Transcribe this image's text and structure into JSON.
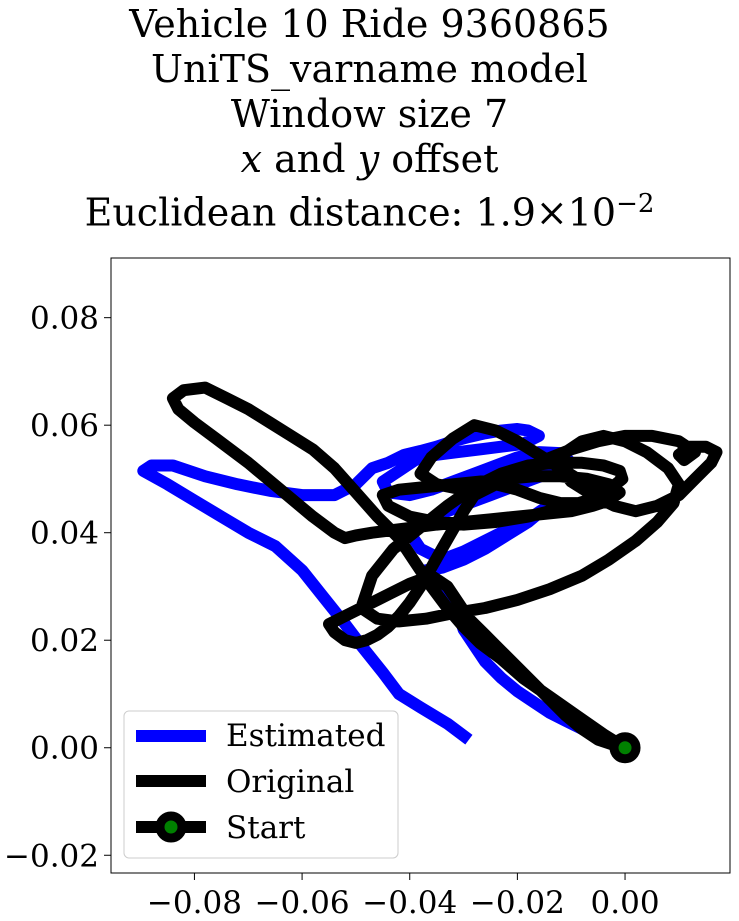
{
  "chart_data": {
    "type": "line",
    "title_lines": [
      "Vehicle 10 Ride 9360865",
      "UniTS_varname model",
      "Window size 7"
    ],
    "title_offset": {
      "x": "x",
      "and": " and ",
      "y": "y",
      "suffix": " offset"
    },
    "title_distance": {
      "prefix": "Euclidean distance: ",
      "mantissa": "1.9",
      "times": "×",
      "base": "10",
      "exponent": "−2"
    },
    "xlabel": "",
    "ylabel": "",
    "xlim": [
      -0.0955,
      0.0195
    ],
    "ylim": [
      -0.0233,
      0.0911
    ],
    "x_ticks": [
      -0.08,
      -0.06,
      -0.04,
      -0.02,
      0.0
    ],
    "x_tick_labels": [
      "−0.08",
      "−0.06",
      "−0.04",
      "−0.02",
      "0.00"
    ],
    "y_ticks": [
      -0.02,
      0.0,
      0.02,
      0.04,
      0.06,
      0.08
    ],
    "y_tick_labels": [
      "−0.02",
      "0.00",
      "0.02",
      "0.04",
      "0.06",
      "0.08"
    ],
    "legend_position": "lower-left",
    "series": [
      {
        "name": "Estimated",
        "color": "#0000ff",
        "x": [
          -0.029,
          -0.033,
          -0.038,
          -0.042,
          -0.045,
          -0.049,
          -0.052,
          -0.056,
          -0.06,
          -0.065,
          -0.07,
          -0.075,
          -0.08,
          -0.085,
          -0.0895,
          -0.088,
          -0.084,
          -0.078,
          -0.072,
          -0.066,
          -0.06,
          -0.054,
          -0.05,
          -0.047,
          -0.044,
          -0.041,
          -0.038,
          -0.035,
          -0.032,
          -0.029,
          -0.026,
          -0.023,
          -0.02,
          -0.018,
          -0.016,
          -0.019,
          -0.023,
          -0.027,
          -0.031,
          -0.035,
          -0.039,
          -0.042,
          -0.045,
          -0.044,
          -0.04,
          -0.036,
          -0.032,
          -0.028,
          -0.024,
          -0.02,
          -0.016,
          -0.012,
          -0.01,
          -0.013,
          -0.017,
          -0.021,
          -0.025,
          -0.029,
          -0.033,
          -0.037,
          -0.04,
          -0.038,
          -0.034,
          -0.03,
          -0.026,
          -0.022,
          -0.018,
          -0.015,
          -0.018,
          -0.022,
          -0.026,
          -0.03,
          -0.034,
          -0.037,
          -0.035,
          -0.032,
          -0.031,
          -0.03,
          -0.028,
          -0.026,
          -0.023,
          -0.02,
          -0.017,
          -0.014,
          -0.011,
          -0.008,
          -0.005,
          -0.002,
          0.0
        ],
        "y": [
          0.0015,
          0.0045,
          0.0075,
          0.01,
          0.014,
          0.019,
          0.023,
          0.028,
          0.033,
          0.0375,
          0.04,
          0.043,
          0.046,
          0.049,
          0.0515,
          0.0525,
          0.0525,
          0.0505,
          0.049,
          0.0478,
          0.047,
          0.047,
          0.049,
          0.052,
          0.053,
          0.0545,
          0.0552,
          0.056,
          0.057,
          0.0578,
          0.0585,
          0.059,
          0.0593,
          0.059,
          0.058,
          0.0565,
          0.056,
          0.0555,
          0.055,
          0.0545,
          0.0535,
          0.0515,
          0.0495,
          0.0475,
          0.047,
          0.048,
          0.0495,
          0.051,
          0.0525,
          0.054,
          0.055,
          0.0548,
          0.053,
          0.0515,
          0.05,
          0.0485,
          0.047,
          0.0455,
          0.044,
          0.042,
          0.04,
          0.037,
          0.035,
          0.0365,
          0.0385,
          0.0405,
          0.0425,
          0.0445,
          0.042,
          0.0395,
          0.037,
          0.035,
          0.0335,
          0.033,
          0.031,
          0.028,
          0.025,
          0.022,
          0.019,
          0.016,
          0.013,
          0.0105,
          0.0085,
          0.0065,
          0.005,
          0.0035,
          0.002,
          0.0008,
          0.0
        ]
      },
      {
        "name": "Original",
        "color": "#000000",
        "x": [
          0.0,
          -0.004,
          -0.009,
          -0.014,
          -0.019,
          -0.023,
          -0.027,
          -0.03,
          -0.033,
          -0.036,
          -0.039,
          -0.042,
          -0.046,
          -0.05,
          -0.054,
          -0.058,
          -0.062,
          -0.066,
          -0.07,
          -0.074,
          -0.078,
          -0.082,
          -0.084,
          -0.083,
          -0.08,
          -0.076,
          -0.07,
          -0.064,
          -0.058,
          -0.054,
          -0.052,
          -0.05,
          -0.047,
          -0.043,
          -0.039,
          -0.035,
          -0.03,
          -0.025,
          -0.02,
          -0.015,
          -0.01,
          -0.006,
          -0.003,
          -0.001,
          -0.003,
          -0.007,
          -0.012,
          -0.017,
          -0.022,
          -0.027,
          -0.032,
          -0.037,
          -0.042,
          -0.045,
          -0.044,
          -0.04,
          -0.035,
          -0.03,
          -0.024,
          -0.018,
          -0.012,
          -0.007,
          -0.003,
          -0.0005,
          -0.001,
          -0.004,
          -0.008,
          -0.013,
          -0.018,
          -0.023,
          -0.028,
          -0.033,
          -0.038,
          -0.043,
          -0.047,
          -0.049,
          -0.046,
          -0.042,
          -0.037,
          -0.032,
          -0.026,
          -0.02,
          -0.014,
          -0.008,
          -0.003,
          0.002,
          0.006,
          0.009,
          0.01,
          0.008,
          0.004,
          0.0,
          -0.004,
          -0.008,
          -0.011,
          -0.012,
          -0.01,
          -0.006,
          -0.002,
          0.002,
          0.006,
          0.01,
          0.013,
          0.016,
          0.017,
          0.015,
          0.012,
          0.01,
          0.011,
          0.013,
          0.01,
          0.005,
          0.0,
          -0.005,
          -0.01,
          -0.015,
          -0.02,
          -0.025,
          -0.03,
          -0.035,
          -0.038,
          -0.036,
          -0.032,
          -0.028,
          -0.024,
          -0.02,
          -0.016,
          -0.012,
          -0.008,
          -0.005,
          -0.008,
          -0.012,
          -0.016,
          -0.02,
          -0.024,
          -0.028,
          -0.03,
          -0.032,
          -0.034,
          -0.036,
          -0.038,
          -0.04,
          -0.042,
          -0.044,
          -0.046,
          -0.048,
          -0.05,
          -0.052,
          -0.054,
          -0.055,
          -0.052,
          -0.048,
          -0.044,
          -0.04,
          -0.036,
          -0.033,
          -0.031,
          -0.029,
          -0.026,
          -0.023,
          -0.02,
          -0.017,
          -0.014,
          -0.011,
          -0.008,
          -0.005,
          -0.002,
          0.0
        ],
        "y": [
          0.0,
          0.0025,
          0.006,
          0.0095,
          0.013,
          0.0165,
          0.0195,
          0.0225,
          0.026,
          0.03,
          0.0345,
          0.039,
          0.043,
          0.0475,
          0.052,
          0.0555,
          0.058,
          0.0605,
          0.063,
          0.065,
          0.067,
          0.0665,
          0.065,
          0.063,
          0.0605,
          0.0575,
          0.053,
          0.048,
          0.043,
          0.04,
          0.039,
          0.0395,
          0.04,
          0.0405,
          0.041,
          0.0415,
          0.042,
          0.0425,
          0.043,
          0.0435,
          0.044,
          0.045,
          0.046,
          0.0475,
          0.049,
          0.05,
          0.0505,
          0.0505,
          0.05,
          0.0495,
          0.049,
          0.0485,
          0.048,
          0.047,
          0.045,
          0.043,
          0.042,
          0.0415,
          0.042,
          0.043,
          0.0445,
          0.046,
          0.048,
          0.05,
          0.0515,
          0.0525,
          0.053,
          0.053,
          0.0525,
          0.051,
          0.0485,
          0.045,
          0.041,
          0.037,
          0.032,
          0.026,
          0.024,
          0.0235,
          0.024,
          0.025,
          0.026,
          0.0275,
          0.0295,
          0.032,
          0.035,
          0.0385,
          0.042,
          0.0455,
          0.049,
          0.052,
          0.055,
          0.057,
          0.058,
          0.057,
          0.055,
          0.052,
          0.0495,
          0.047,
          0.045,
          0.044,
          0.045,
          0.047,
          0.05,
          0.053,
          0.055,
          0.056,
          0.056,
          0.0545,
          0.0535,
          0.055,
          0.057,
          0.058,
          0.058,
          0.057,
          0.0555,
          0.0535,
          0.051,
          0.049,
          0.048,
          0.049,
          0.051,
          0.054,
          0.0575,
          0.06,
          0.059,
          0.057,
          0.0545,
          0.052,
          0.0495,
          0.047,
          0.0455,
          0.0455,
          0.0465,
          0.048,
          0.049,
          0.047,
          0.044,
          0.0405,
          0.037,
          0.0335,
          0.03,
          0.027,
          0.0245,
          0.0225,
          0.021,
          0.02,
          0.0195,
          0.02,
          0.0215,
          0.023,
          0.0245,
          0.0265,
          0.0285,
          0.0305,
          0.032,
          0.03,
          0.027,
          0.024,
          0.021,
          0.018,
          0.015,
          0.012,
          0.009,
          0.006,
          0.0035,
          0.0015,
          0.0005,
          0.0
        ]
      }
    ],
    "start_point": {
      "name": "Start",
      "x": 0.0,
      "y": 0.0,
      "edge_color": "#000000",
      "face_color": "#008000"
    }
  }
}
